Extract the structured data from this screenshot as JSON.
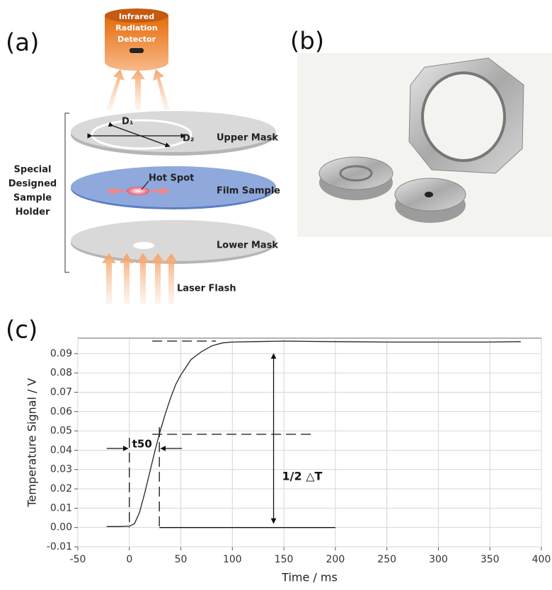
{
  "panels": {
    "a": "(a)",
    "b": "(b)",
    "c": "(c)"
  },
  "diagram": {
    "detector": [
      "Infrared",
      "Radiation",
      "Detector"
    ],
    "holder": [
      "Special",
      "Designed",
      "Sample",
      "Holder"
    ],
    "upper_mask": "Upper Mask",
    "film_sample": "Film Sample",
    "lower_mask": "Lower Mask",
    "laser_flash": "Laser Flash",
    "hot_spot": "Hot Spot",
    "d1": "D₁",
    "d2": "D₂"
  },
  "chart_data": {
    "type": "line",
    "xlabel": "Time / ms",
    "ylabel": "Temperature Signal / V",
    "x": [
      -22,
      -10,
      0,
      5,
      10,
      15,
      20,
      25,
      30,
      35,
      40,
      45,
      50,
      55,
      60,
      70,
      80,
      90,
      100,
      120,
      150,
      200,
      250,
      300,
      350,
      380
    ],
    "series": [
      {
        "color": "#222222",
        "values": [
          0.0005,
          0.0005,
          0.0007,
          0.002,
          0.008,
          0.018,
          0.029,
          0.04,
          0.05,
          0.059,
          0.067,
          0.074,
          0.079,
          0.083,
          0.087,
          0.091,
          0.094,
          0.0955,
          0.096,
          0.0962,
          0.0965,
          0.0962,
          0.096,
          0.096,
          0.096,
          0.0962
        ]
      }
    ],
    "xlim": [
      -50,
      400
    ],
    "xticks": [
      -50,
      0,
      50,
      100,
      150,
      200,
      250,
      300,
      350,
      400
    ],
    "ylim": [
      -0.01,
      0.098
    ],
    "yticks": [
      -0.01,
      {
        "value": 0,
        "label": "0.00"
      },
      0.01,
      0.02,
      0.03,
      0.04,
      0.05,
      0.06,
      0.07,
      0.08,
      0.09
    ],
    "grid": true,
    "annotations": [
      "t50",
      "1/2 △T"
    ]
  }
}
